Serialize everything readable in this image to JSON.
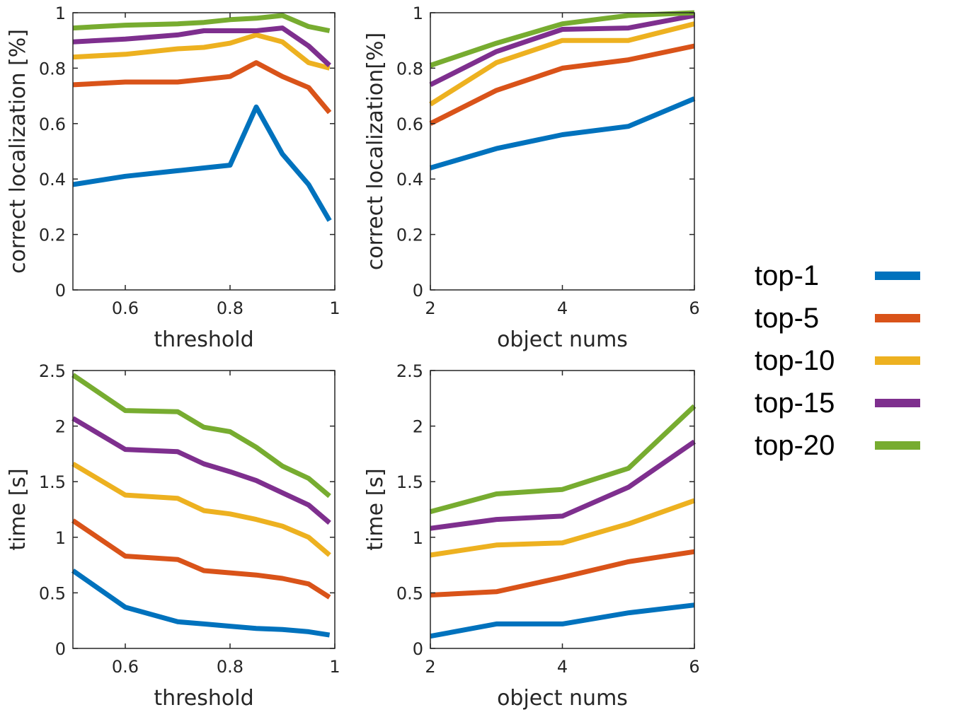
{
  "legend": [
    {
      "label": "top-1",
      "color": "#0072BD"
    },
    {
      "label": "top-5",
      "color": "#D95319"
    },
    {
      "label": "top-10",
      "color": "#EDB120"
    },
    {
      "label": "top-15",
      "color": "#7E2F8E"
    },
    {
      "label": "top-20",
      "color": "#77AC30"
    }
  ],
  "chart_data": [
    {
      "type": "line",
      "xlabel": "threshold",
      "ylabel": "correct localization [%]",
      "xlim": [
        0.5,
        1
      ],
      "ylim": [
        0,
        1
      ],
      "xticks": [
        0.6,
        0.8,
        1
      ],
      "yticks": [
        0,
        0.2,
        0.4,
        0.6,
        0.8,
        1
      ],
      "xtick_labels": [
        "0.6",
        "0.8",
        "1"
      ],
      "ytick_labels": [
        "0",
        "0.2",
        "0.4",
        "0.6",
        "0.8",
        "1"
      ],
      "grid": false,
      "x": [
        0.5,
        0.6,
        0.7,
        0.75,
        0.8,
        0.85,
        0.9,
        0.95,
        0.99
      ],
      "series": [
        {
          "name": "top-1",
          "values": [
            0.38,
            0.41,
            0.43,
            0.44,
            0.45,
            0.66,
            0.49,
            0.38,
            0.25
          ]
        },
        {
          "name": "top-5",
          "values": [
            0.74,
            0.75,
            0.75,
            0.76,
            0.77,
            0.82,
            0.77,
            0.73,
            0.64
          ]
        },
        {
          "name": "top-10",
          "values": [
            0.84,
            0.85,
            0.87,
            0.875,
            0.89,
            0.92,
            0.895,
            0.82,
            0.8
          ]
        },
        {
          "name": "top-15",
          "values": [
            0.895,
            0.905,
            0.92,
            0.935,
            0.935,
            0.935,
            0.945,
            0.88,
            0.81
          ]
        },
        {
          "name": "top-20",
          "values": [
            0.945,
            0.955,
            0.96,
            0.965,
            0.975,
            0.98,
            0.99,
            0.95,
            0.935
          ]
        }
      ]
    },
    {
      "type": "line",
      "xlabel": "object nums",
      "ylabel": "correct localization[%]",
      "xlim": [
        2,
        6
      ],
      "ylim": [
        0,
        1
      ],
      "xticks": [
        2,
        4,
        6
      ],
      "yticks": [
        0,
        0.2,
        0.4,
        0.6,
        0.8,
        1
      ],
      "xtick_labels": [
        "2",
        "4",
        "6"
      ],
      "ytick_labels": [
        "0",
        "0.2",
        "0.4",
        "0.6",
        "0.8",
        "1"
      ],
      "grid": false,
      "x": [
        2,
        3,
        4,
        5,
        6
      ],
      "series": [
        {
          "name": "top-1",
          "values": [
            0.44,
            0.51,
            0.56,
            0.59,
            0.69
          ]
        },
        {
          "name": "top-5",
          "values": [
            0.6,
            0.72,
            0.8,
            0.83,
            0.88
          ]
        },
        {
          "name": "top-10",
          "values": [
            0.67,
            0.82,
            0.9,
            0.9,
            0.96
          ]
        },
        {
          "name": "top-15",
          "values": [
            0.74,
            0.86,
            0.94,
            0.945,
            0.99
          ]
        },
        {
          "name": "top-20",
          "values": [
            0.81,
            0.89,
            0.96,
            0.99,
            1.0
          ]
        }
      ]
    },
    {
      "type": "line",
      "xlabel": "threshold",
      "ylabel": "time [s]",
      "xlim": [
        0.5,
        1
      ],
      "ylim": [
        0,
        2.5
      ],
      "xticks": [
        0.6,
        0.8,
        1
      ],
      "yticks": [
        0,
        0.5,
        1,
        1.5,
        2,
        2.5
      ],
      "xtick_labels": [
        "0.6",
        "0.8",
        "1"
      ],
      "ytick_labels": [
        "0",
        "0.5",
        "1",
        "1.5",
        "2",
        "2.5"
      ],
      "grid": false,
      "x": [
        0.5,
        0.6,
        0.7,
        0.75,
        0.8,
        0.85,
        0.9,
        0.95,
        0.99
      ],
      "series": [
        {
          "name": "top-1",
          "values": [
            0.7,
            0.37,
            0.24,
            0.22,
            0.2,
            0.18,
            0.17,
            0.15,
            0.12
          ]
        },
        {
          "name": "top-5",
          "values": [
            1.15,
            0.83,
            0.8,
            0.7,
            0.68,
            0.66,
            0.63,
            0.58,
            0.46
          ]
        },
        {
          "name": "top-10",
          "values": [
            1.66,
            1.38,
            1.35,
            1.24,
            1.21,
            1.16,
            1.1,
            1.0,
            0.84
          ]
        },
        {
          "name": "top-15",
          "values": [
            2.07,
            1.79,
            1.77,
            1.66,
            1.59,
            1.51,
            1.4,
            1.29,
            1.13
          ]
        },
        {
          "name": "top-20",
          "values": [
            2.46,
            2.14,
            2.13,
            1.99,
            1.95,
            1.81,
            1.64,
            1.53,
            1.37
          ]
        }
      ]
    },
    {
      "type": "line",
      "xlabel": "object nums",
      "ylabel": "time [s]",
      "xlim": [
        2,
        6
      ],
      "ylim": [
        0,
        2.5
      ],
      "xticks": [
        2,
        4,
        6
      ],
      "yticks": [
        0,
        0.5,
        1,
        1.5,
        2,
        2.5
      ],
      "xtick_labels": [
        "2",
        "4",
        "6"
      ],
      "ytick_labels": [
        "0",
        "0.5",
        "1",
        "1.5",
        "2",
        "2.5"
      ],
      "grid": false,
      "x": [
        2,
        3,
        4,
        5,
        6
      ],
      "series": [
        {
          "name": "top-1",
          "values": [
            0.11,
            0.22,
            0.22,
            0.32,
            0.39
          ]
        },
        {
          "name": "top-5",
          "values": [
            0.48,
            0.51,
            0.64,
            0.78,
            0.87
          ]
        },
        {
          "name": "top-10",
          "values": [
            0.84,
            0.93,
            0.95,
            1.12,
            1.33
          ]
        },
        {
          "name": "top-15",
          "values": [
            1.08,
            1.16,
            1.19,
            1.45,
            1.86
          ]
        },
        {
          "name": "top-20",
          "values": [
            1.23,
            1.39,
            1.43,
            1.62,
            2.18
          ]
        }
      ]
    }
  ]
}
